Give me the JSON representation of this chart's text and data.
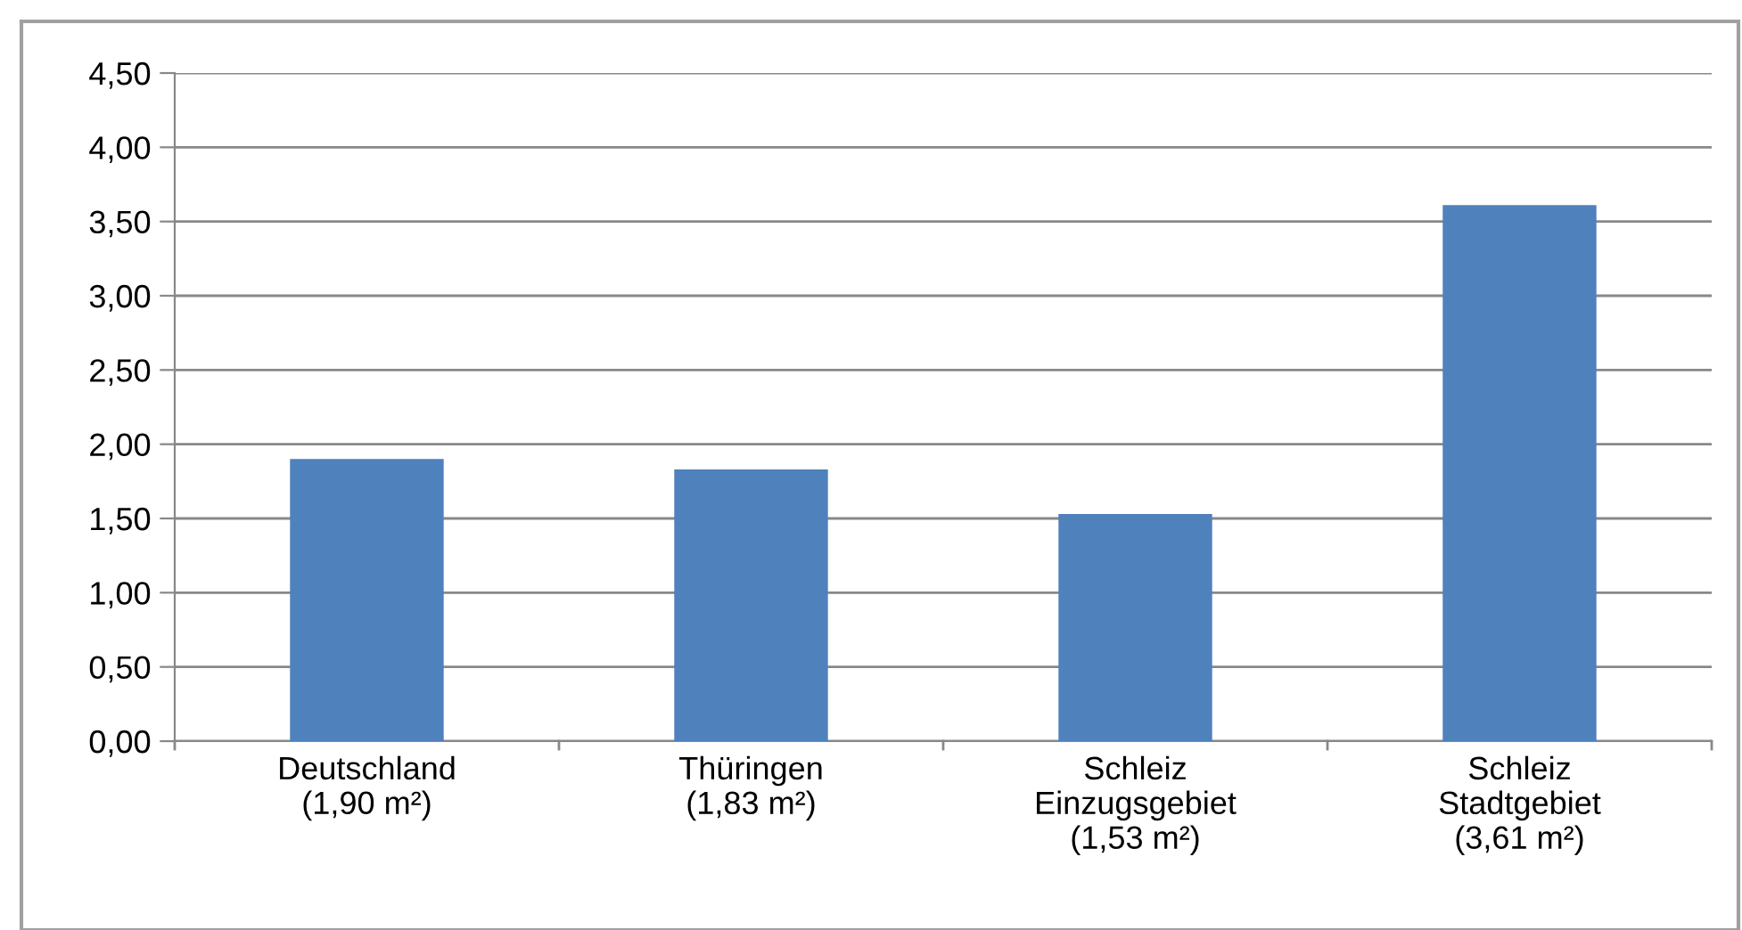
{
  "chart_data": {
    "type": "bar",
    "categories": [
      "Deutschland\n(1,90 m²)",
      "Thüringen\n(1,83 m²)",
      "Schleiz\nEinzugsgebiet\n(1,53 m²)",
      "Schleiz\nStadtgebiet\n(3,61 m²)"
    ],
    "values": [
      1.9,
      1.83,
      1.53,
      3.61
    ],
    "color": "#4f81bd",
    "ylim": [
      0,
      4.5
    ],
    "yticks": [
      {
        "value": 0,
        "label": "0,00"
      },
      {
        "value": 0.5,
        "label": "0,50"
      },
      {
        "value": 1,
        "label": "1,00"
      },
      {
        "value": 1.5,
        "label": "1,50"
      },
      {
        "value": 2,
        "label": "2,00"
      },
      {
        "value": 2.5,
        "label": "2,50"
      },
      {
        "value": 3,
        "label": "3,00"
      },
      {
        "value": 3.5,
        "label": "3,50"
      },
      {
        "value": 4,
        "label": "4,00"
      },
      {
        "value": 4.5,
        "label": "4,50"
      }
    ],
    "grid": "y",
    "legend": false
  }
}
